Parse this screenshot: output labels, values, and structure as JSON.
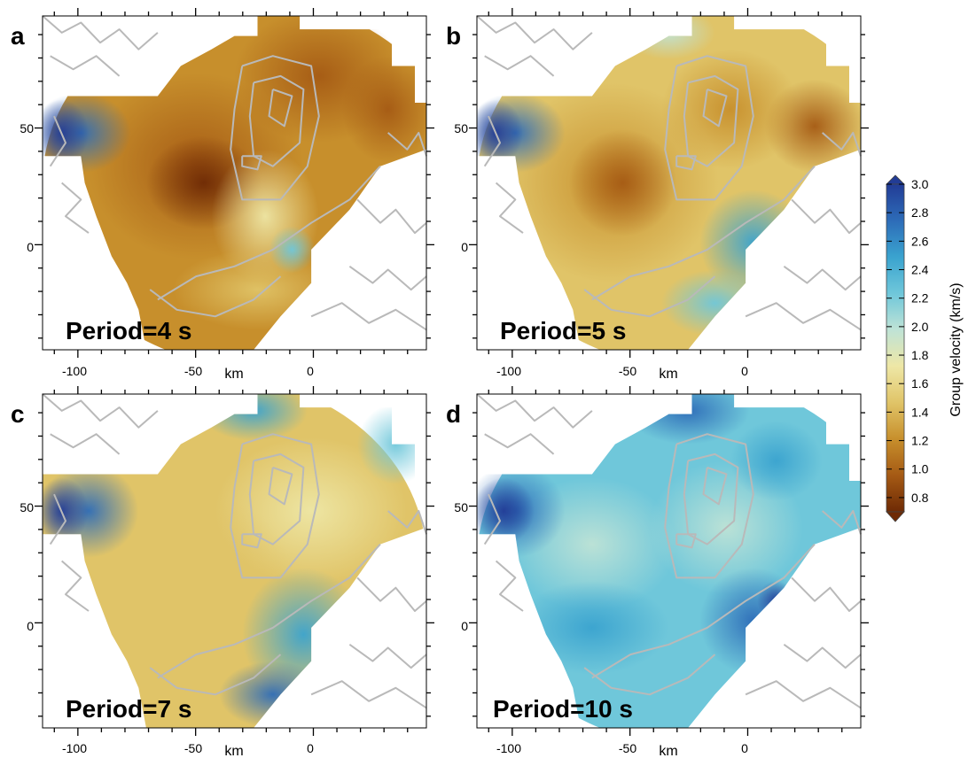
{
  "chart_data": {
    "type": "heatmap",
    "x_unit": "km",
    "xticks": [
      -100,
      -50,
      0
    ],
    "yticks": [
      0,
      50
    ],
    "xlim": [
      -115,
      48
    ],
    "ylim": [
      -45,
      98
    ],
    "panels": [
      {
        "letter": "a",
        "label": "Period=4 s",
        "x_label": "km"
      },
      {
        "letter": "b",
        "label": "Period=5 s",
        "x_label": "km"
      },
      {
        "letter": "c",
        "label": "Period=7 s",
        "x_label": "km"
      },
      {
        "letter": "d",
        "label": "Period=10 s",
        "x_label": "km"
      }
    ],
    "colorbar": {
      "title": "Group velocity (km/s)",
      "range": [
        0.7,
        3.0
      ],
      "ticks": [
        "3.0",
        "2.8",
        "2.6",
        "2.4",
        "2.2",
        "2.0",
        "1.8",
        "1.6",
        "1.4",
        "1.2",
        "1.0",
        "0.8"
      ],
      "colors": [
        "#6e2a05",
        "#a55a14",
        "#c78f2c",
        "#e0c468",
        "#eee7a6",
        "#bfe3d6",
        "#6fc7da",
        "#3aa3cf",
        "#2d6cb8",
        "#223c96"
      ]
    }
  }
}
